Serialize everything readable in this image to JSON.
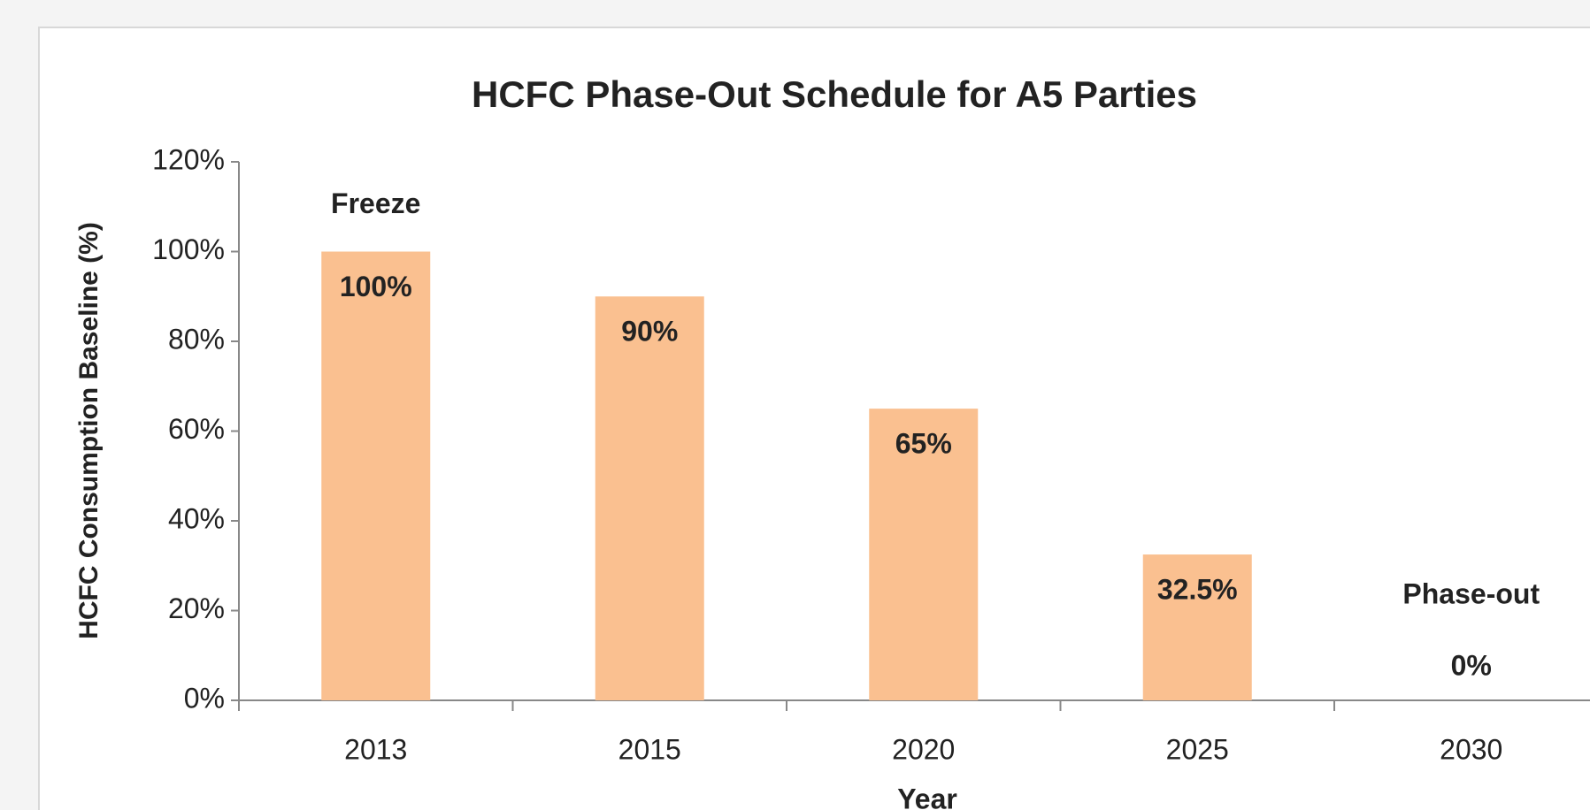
{
  "chart_data": {
    "type": "bar",
    "title": "HCFC Phase-Out Schedule for A5 Parties",
    "x_label": "Year",
    "y_label": "HCFC Consumption Baseline (%)",
    "categories": [
      "2013",
      "2015",
      "2020",
      "2025",
      "2030"
    ],
    "values": [
      100,
      90,
      65,
      32.5,
      0
    ],
    "value_labels": [
      "100%",
      "90%",
      "65%",
      "32.5%",
      "0%"
    ],
    "color": "#fac090",
    "ylim": [
      0,
      120
    ],
    "yticks": [
      {
        "value": 0,
        "label": "0%"
      },
      {
        "value": 20,
        "label": "20%"
      },
      {
        "value": 40,
        "label": "40%"
      },
      {
        "value": 60,
        "label": "60%"
      },
      {
        "value": 80,
        "label": "80%"
      },
      {
        "value": 100,
        "label": "100%"
      },
      {
        "value": 120,
        "label": "120%"
      }
    ],
    "grid": false,
    "annotations": [
      {
        "text": "Freeze",
        "x": "2013"
      },
      {
        "text": "Phase-out",
        "x": "2030"
      }
    ]
  }
}
